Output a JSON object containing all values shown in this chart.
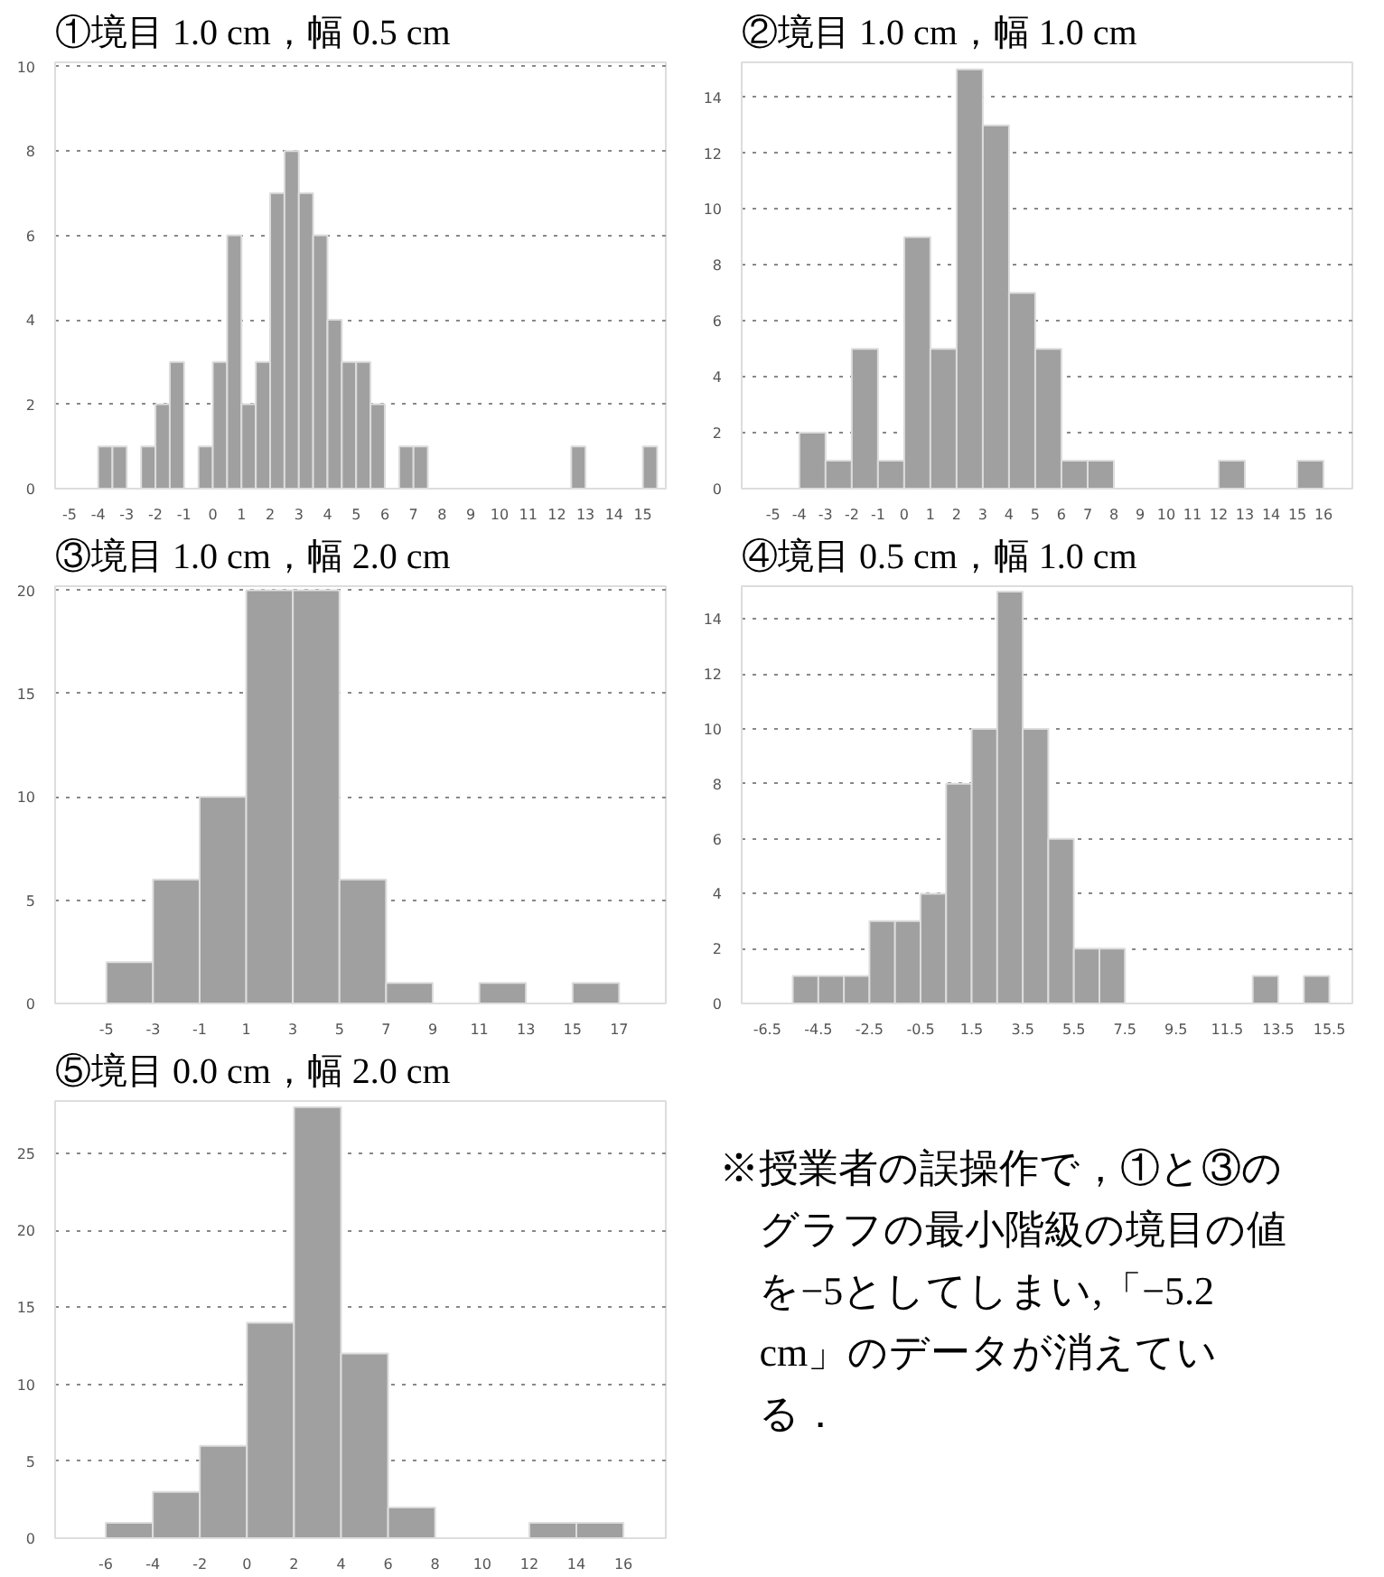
{
  "chart_data": [
    {
      "type": "histogram",
      "title": "①境目 1.0 cm，幅 0.5 cm",
      "color": "#a0a0a0",
      "grid": "y",
      "bins": [
        -5,
        -4.5,
        -4,
        -3.5,
        -3,
        -2.5,
        -2,
        -1.5,
        -1,
        -0.5,
        0,
        0.5,
        1,
        1.5,
        2,
        2.5,
        3,
        3.5,
        4,
        4.5,
        5,
        5.5,
        6,
        6.5,
        7,
        7.5,
        8,
        8.5,
        9,
        9.5,
        10,
        10.5,
        11,
        11.5,
        12,
        12.5,
        13,
        13.5,
        14,
        14.5,
        15,
        15.5
      ],
      "values": [
        0,
        0,
        1,
        1,
        0,
        1,
        2,
        3,
        0,
        1,
        3,
        6,
        2,
        3,
        7,
        8,
        7,
        6,
        4,
        3,
        3,
        2,
        0,
        1,
        1,
        0,
        0,
        0,
        0,
        0,
        0,
        0,
        0,
        0,
        0,
        1,
        0,
        0,
        0,
        0,
        1
      ],
      "xlim": [
        -5.5,
        15.8
      ],
      "xticks": [
        -5,
        -4,
        -3,
        -2,
        -1,
        0,
        1,
        2,
        3,
        4,
        5,
        6,
        7,
        8,
        9,
        10,
        11,
        12,
        13,
        14,
        15
      ],
      "ylim": [
        0,
        10.1
      ],
      "yticks": [
        0,
        2,
        4,
        6,
        8,
        10
      ]
    },
    {
      "type": "histogram",
      "title": "②境目 1.0 cm，幅 1.0 cm",
      "color": "#a0a0a0",
      "grid": "y",
      "bins": [
        -5,
        -4,
        -3,
        -2,
        -1,
        0,
        1,
        2,
        3,
        4,
        5,
        6,
        7,
        8,
        9,
        10,
        11,
        12,
        13,
        14,
        15,
        16
      ],
      "values": [
        0,
        2,
        1,
        5,
        1,
        9,
        5,
        15,
        13,
        7,
        5,
        1,
        1,
        0,
        0,
        0,
        0,
        1,
        0,
        0,
        1
      ],
      "xlim": [
        -6.2,
        17.1
      ],
      "xticks": [
        -5,
        -4,
        -3,
        -2,
        -1,
        0,
        1,
        2,
        3,
        4,
        5,
        6,
        7,
        8,
        9,
        10,
        11,
        12,
        13,
        14,
        15,
        16
      ],
      "ylim": [
        0,
        15.25
      ],
      "yticks": [
        0,
        2,
        4,
        6,
        8,
        10,
        12,
        14
      ]
    },
    {
      "type": "histogram",
      "title": "③境目 1.0 cm，幅 2.0 cm",
      "color": "#a0a0a0",
      "grid": "y",
      "bins": [
        -5,
        -3,
        -1,
        1,
        3,
        5,
        7,
        9,
        11,
        13,
        15,
        17
      ],
      "values": [
        2,
        6,
        10,
        20,
        20,
        6,
        1,
        0,
        1,
        0,
        1
      ],
      "xlim": [
        -7.2,
        19
      ],
      "xticks": [
        -5,
        -3,
        -1,
        1,
        3,
        5,
        7,
        9,
        11,
        13,
        15,
        17
      ],
      "ylim": [
        0,
        20.2
      ],
      "yticks": [
        0,
        5,
        10,
        15,
        20
      ]
    },
    {
      "type": "histogram",
      "title": "④境目 0.5 cm，幅 1.0 cm",
      "color": "#a0a0a0",
      "grid": "y",
      "bins": [
        -5.5,
        -4.5,
        -3.5,
        -2.5,
        -1.5,
        -0.5,
        0.5,
        1.5,
        2.5,
        3.5,
        4.5,
        5.5,
        6.5,
        7.5,
        8.5,
        9.5,
        10.5,
        11.5,
        12.5,
        13.5,
        14.5,
        15.5
      ],
      "values": [
        1,
        1,
        1,
        3,
        3,
        4,
        8,
        10,
        15,
        10,
        6,
        2,
        2,
        0,
        0,
        0,
        0,
        0,
        1,
        0,
        1
      ],
      "xlim": [
        -7.5,
        16.4
      ],
      "xticks": [
        -6.5,
        -4.5,
        -2.5,
        -0.5,
        1.5,
        3.5,
        5.5,
        7.5,
        9.5,
        11.5,
        13.5,
        15.5
      ],
      "ylim": [
        0,
        15.2
      ],
      "yticks": [
        0,
        2,
        4,
        6,
        8,
        10,
        12,
        14
      ]
    },
    {
      "type": "histogram",
      "title": "⑤境目 0.0 cm，幅 2.0 cm",
      "color": "#a0a0a0",
      "grid": "y",
      "bins": [
        -6,
        -4,
        -2,
        0,
        2,
        4,
        6,
        8,
        10,
        12,
        14,
        16
      ],
      "values": [
        1,
        3,
        6,
        14,
        28,
        12,
        2,
        0,
        0,
        1,
        1
      ],
      "xlim": [
        -8.15,
        17.8
      ],
      "xticks": [
        -6,
        -4,
        -2,
        0,
        2,
        4,
        6,
        8,
        10,
        12,
        14,
        16
      ],
      "ylim": [
        0,
        28.4
      ],
      "yticks": [
        0,
        5,
        10,
        15,
        20,
        25
      ]
    },
    {
      "type": "other",
      "annotations": [
        "※授業者の誤操作で，①と③のグラフの最小階級の境目の値を−5としてしまい,「−5.2 cm」のデータが消えている．"
      ]
    }
  ]
}
